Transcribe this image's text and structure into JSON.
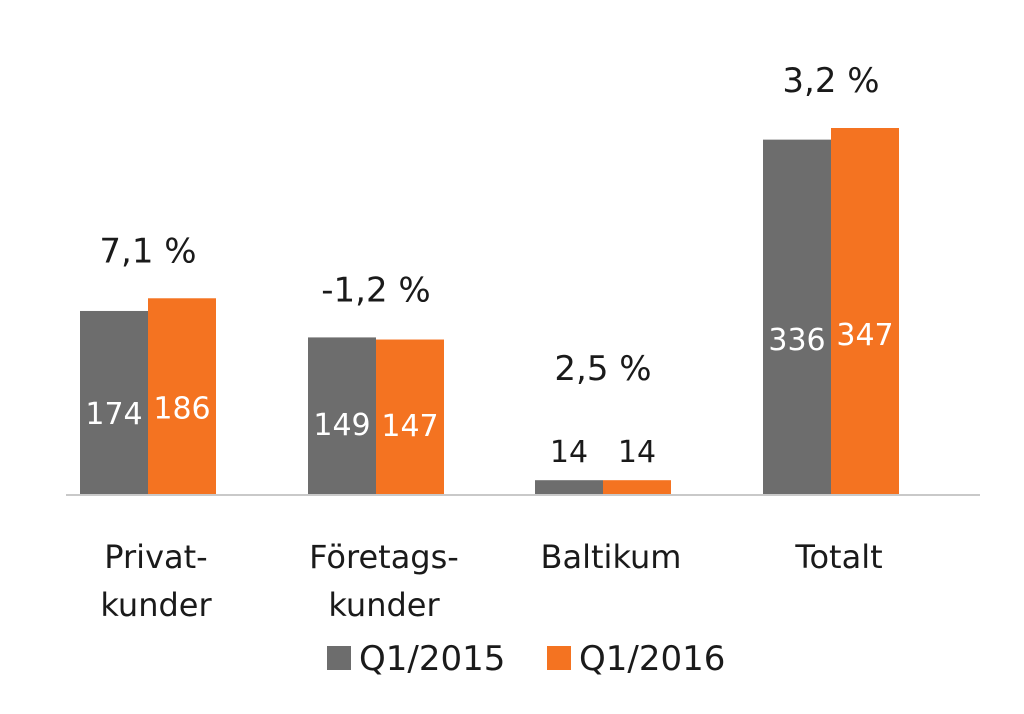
{
  "chart_data": {
    "type": "bar",
    "categories": [
      [
        "Privat-",
        "kunder"
      ],
      [
        "Företags-",
        "kunder"
      ],
      [
        "Baltikum"
      ],
      [
        "Totalt"
      ]
    ],
    "series": [
      {
        "name": "Q1/2015",
        "values": [
          174,
          149,
          14,
          336
        ],
        "color": "#6d6d6d"
      },
      {
        "name": "Q1/2016",
        "values": [
          186,
          147,
          14,
          347
        ],
        "color": "#f47321"
      }
    ],
    "value_labels": [
      [
        "174",
        "186"
      ],
      [
        "149",
        "147"
      ],
      [
        "14",
        "14"
      ],
      [
        "336",
        "347"
      ]
    ],
    "change_labels": [
      "7,1 %",
      "-1,2 %",
      "2,5 %",
      "3,2 %"
    ],
    "title": "",
    "xlabel": "",
    "ylabel": "",
    "ylim": [
      0,
      347
    ],
    "grid": false,
    "legend_position": "bottom"
  }
}
